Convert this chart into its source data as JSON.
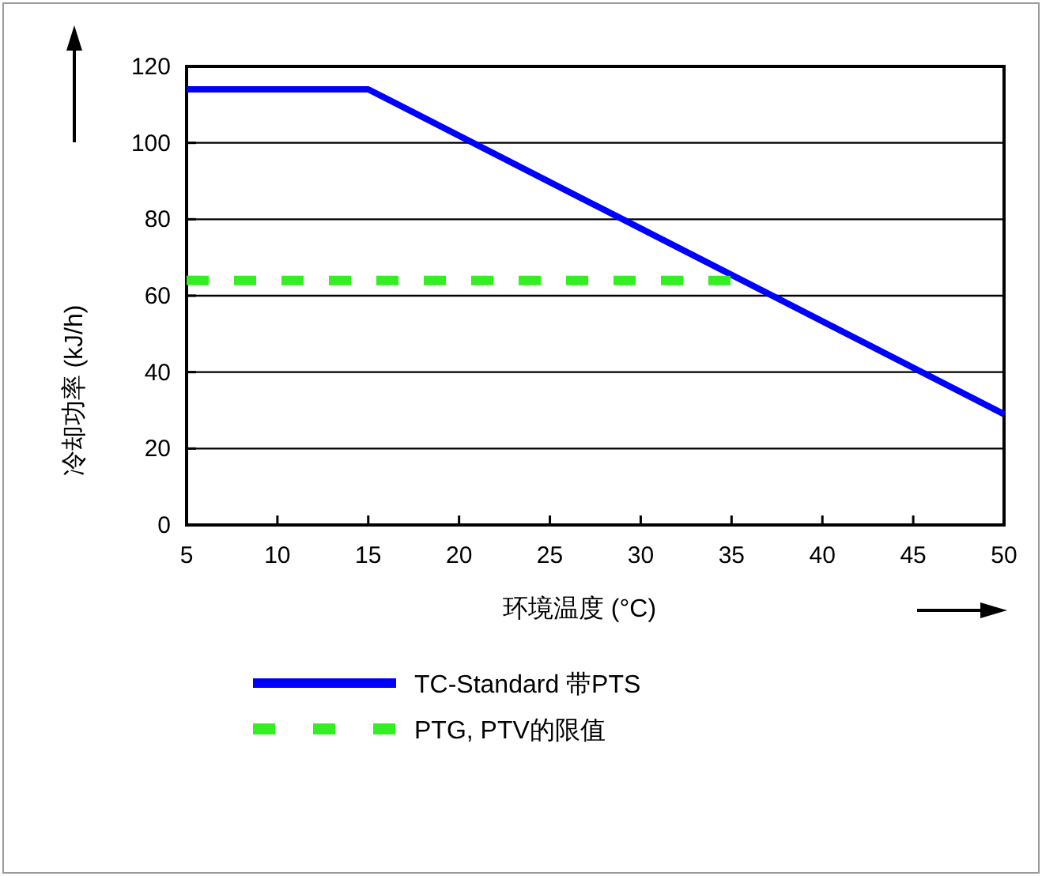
{
  "chart_data": {
    "type": "line",
    "xlabel": "环境温度 (°C)",
    "ylabel": "冷却功率 (kJ/h)",
    "xlim": [
      5,
      50
    ],
    "xticks": [
      5,
      10,
      15,
      20,
      25,
      30,
      35,
      40,
      45,
      50
    ],
    "ylim": [
      0,
      120
    ],
    "yticks": [
      0,
      20,
      40,
      60,
      80,
      100,
      120
    ],
    "grid": "y",
    "legend": "bottom",
    "series": [
      {
        "name": "TC-Standard 带PTS",
        "color": "#0000ff",
        "x": [
          5,
          15,
          50
        ],
        "values": [
          114,
          114,
          29
        ],
        "line_style": "solid"
      },
      {
        "name": "PTG, PTV的限值",
        "color": "#33ee22",
        "x": [
          5,
          35
        ],
        "values": [
          64,
          64
        ],
        "line_style": "dashed"
      }
    ]
  }
}
